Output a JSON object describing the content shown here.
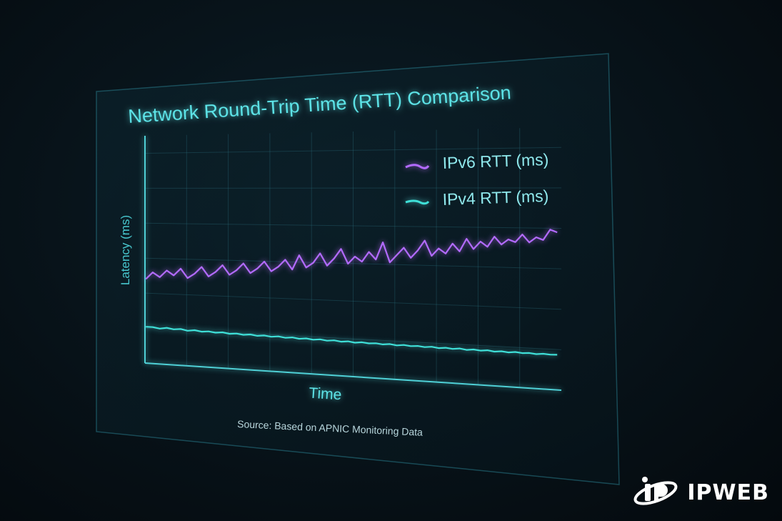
{
  "chart_data": {
    "type": "line",
    "title": "Network Round-Trip Time (RTT) Comparison",
    "xlabel": "Time",
    "ylabel": "Latency (ms)",
    "source": "Source: Based on APNIC Monitoring Data",
    "grid": true,
    "legend_position": "top-right",
    "ylim": [
      0,
      100
    ],
    "x": [
      0,
      1,
      2,
      3,
      4,
      5,
      6,
      7,
      8,
      9,
      10,
      11,
      12,
      13,
      14,
      15,
      16,
      17,
      18,
      19,
      20,
      21,
      22,
      23,
      24,
      25,
      26,
      27,
      28,
      29,
      30,
      31,
      32,
      33,
      34,
      35,
      36,
      37,
      38,
      39,
      40,
      41,
      42,
      43,
      44,
      45,
      46,
      47,
      48,
      49,
      50,
      51,
      52,
      53,
      54,
      55,
      56,
      57,
      58,
      59
    ],
    "series": [
      {
        "name": "IPv6 RTT (ms)",
        "color": "#b36bff",
        "values": [
          37,
          40,
          38,
          41,
          39,
          42,
          38,
          40,
          43,
          39,
          41,
          44,
          40,
          42,
          45,
          41,
          43,
          46,
          42,
          44,
          47,
          43,
          49,
          44,
          46,
          50,
          45,
          48,
          52,
          46,
          49,
          47,
          51,
          48,
          55,
          47,
          50,
          53,
          49,
          52,
          56,
          50,
          53,
          51,
          55,
          52,
          57,
          53,
          56,
          54,
          58,
          55,
          57,
          56,
          59,
          56,
          58,
          57,
          61,
          60
        ]
      },
      {
        "name": "IPv4 RTT (ms)",
        "color": "#3fe0d8",
        "values": [
          16,
          16,
          15.5,
          16,
          15.5,
          15.8,
          15.2,
          15.6,
          15.1,
          15.4,
          15,
          15.3,
          14.8,
          15.1,
          14.7,
          15,
          14.6,
          14.9,
          14.5,
          14.8,
          14.4,
          14.7,
          14.3,
          14.6,
          14.2,
          14.5,
          14.1,
          14.4,
          14,
          14.3,
          13.9,
          14.2,
          13.9,
          14.1,
          13.8,
          14.1,
          13.7,
          14,
          13.7,
          13.9,
          13.6,
          13.9,
          13.5,
          13.8,
          13.5,
          13.8,
          13.4,
          13.7,
          13.4,
          13.7,
          13.3,
          13.6,
          13.3,
          13.6,
          13.3,
          13.5,
          13.2,
          13.5,
          13.3,
          13.4
        ]
      }
    ]
  },
  "brand": {
    "name": "IPWEB"
  }
}
